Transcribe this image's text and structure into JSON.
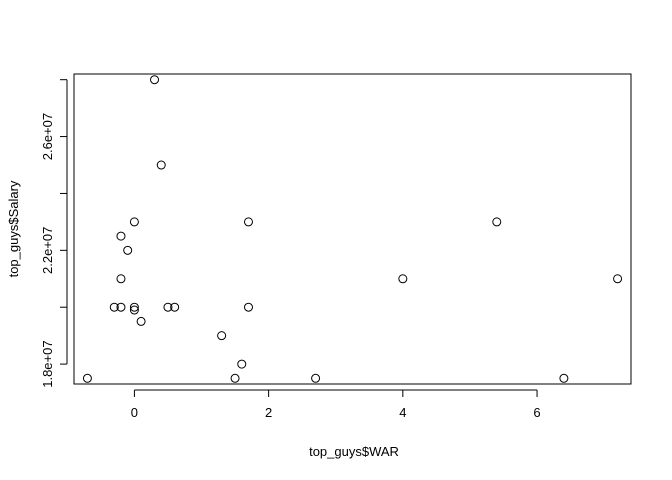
{
  "chart_data": {
    "type": "scatter",
    "title": "",
    "xlabel": "top_guys$WAR",
    "ylabel": "top_guys$Salary",
    "xlim": [
      -0.9,
      7.4
    ],
    "ylim": [
      17300000,
      28200000
    ],
    "xticks": [
      0,
      2,
      4,
      6
    ],
    "xtick_labels": [
      "0",
      "2",
      "4",
      "6"
    ],
    "yticks": [
      18000000,
      20000000,
      22000000,
      24000000,
      26000000,
      28000000
    ],
    "ytick_labels": [
      "1.8e+07",
      "",
      "2.2e+07",
      "",
      "2.6e+07",
      ""
    ],
    "grid": false,
    "points": [
      {
        "x": -0.7,
        "y": 17500000
      },
      {
        "x": -0.3,
        "y": 20000000
      },
      {
        "x": -0.2,
        "y": 20000000
      },
      {
        "x": -0.2,
        "y": 21000000
      },
      {
        "x": -0.2,
        "y": 22500000
      },
      {
        "x": -0.1,
        "y": 22000000
      },
      {
        "x": 0.0,
        "y": 23000000
      },
      {
        "x": 0.0,
        "y": 20000000
      },
      {
        "x": 0.0,
        "y": 19900000
      },
      {
        "x": 0.1,
        "y": 19500000
      },
      {
        "x": 0.3,
        "y": 28000000
      },
      {
        "x": 0.4,
        "y": 25000000
      },
      {
        "x": 0.5,
        "y": 20000000
      },
      {
        "x": 0.6,
        "y": 20000000
      },
      {
        "x": 1.3,
        "y": 19000000
      },
      {
        "x": 1.5,
        "y": 17500000
      },
      {
        "x": 1.6,
        "y": 18000000
      },
      {
        "x": 1.7,
        "y": 23000000
      },
      {
        "x": 1.7,
        "y": 20000000
      },
      {
        "x": 2.7,
        "y": 17500000
      },
      {
        "x": 4.0,
        "y": 21000000
      },
      {
        "x": 5.4,
        "y": 23000000
      },
      {
        "x": 6.4,
        "y": 17500000
      },
      {
        "x": 7.2,
        "y": 21000000
      }
    ]
  }
}
